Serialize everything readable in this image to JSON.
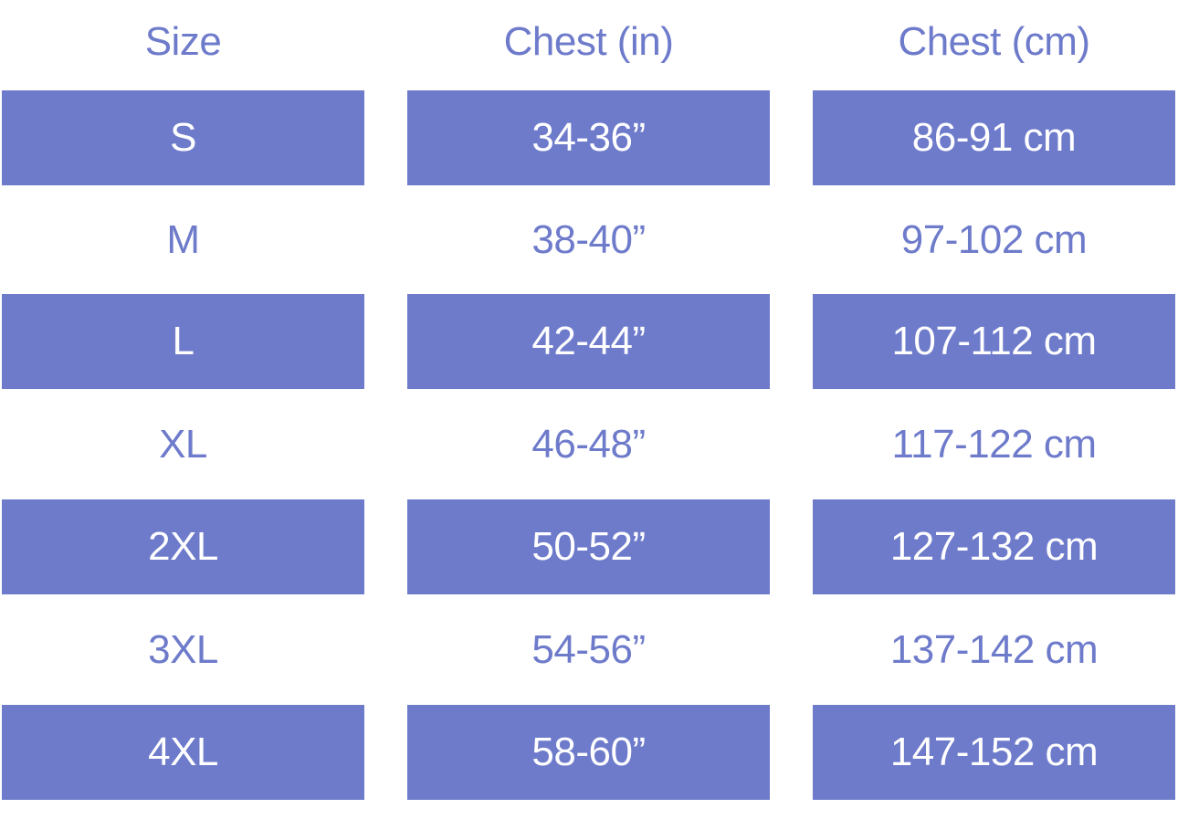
{
  "headers": [
    "Size",
    "Chest (in)",
    "Chest (cm)"
  ],
  "colors": {
    "accent": "#6E7BCB",
    "highlight_text": "#FFFFFF"
  },
  "rows": [
    {
      "size": "S",
      "in": "34-36”",
      "cm": "86-91 cm",
      "highlighted": true
    },
    {
      "size": "M",
      "in": "38-40”",
      "cm": "97-102 cm",
      "highlighted": false
    },
    {
      "size": "L",
      "in": "42-44”",
      "cm": "107-112 cm",
      "highlighted": true
    },
    {
      "size": "XL",
      "in": "46-48”",
      "cm": "117-122 cm",
      "highlighted": false
    },
    {
      "size": "2XL",
      "in": "50-52”",
      "cm": "127-132 cm",
      "highlighted": true
    },
    {
      "size": "3XL",
      "in": "54-56”",
      "cm": "137-142 cm",
      "highlighted": false
    },
    {
      "size": "4XL",
      "in": "58-60”",
      "cm": "147-152 cm",
      "highlighted": true
    }
  ]
}
